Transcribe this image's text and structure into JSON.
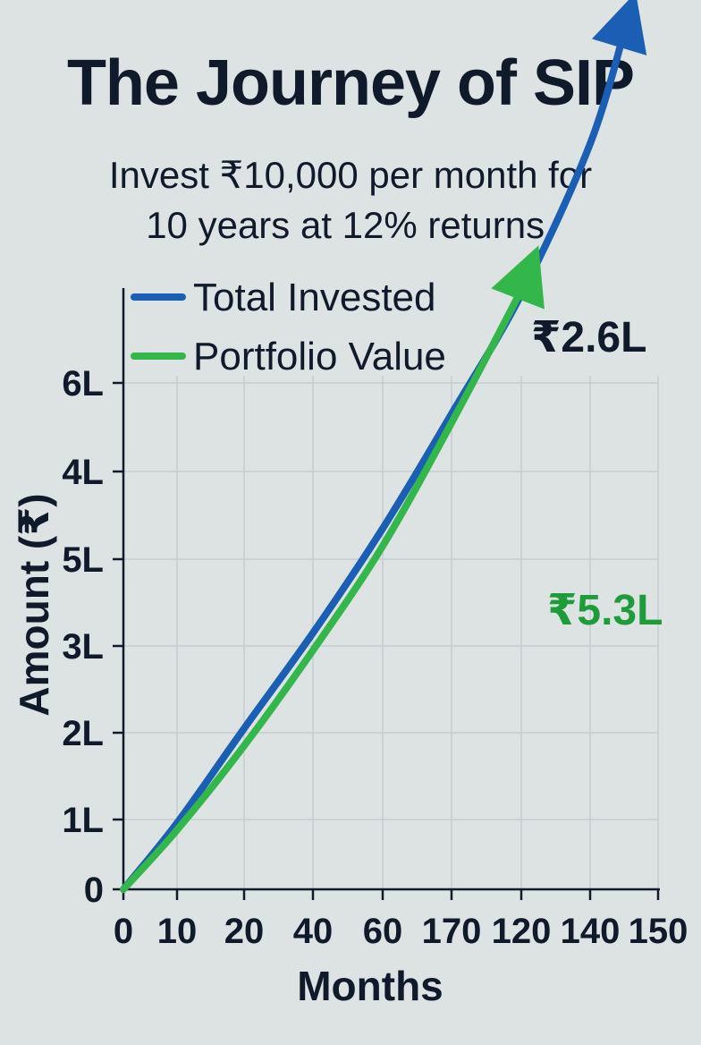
{
  "title": "The Journey of SIP",
  "subtitle_line1": "Invest ₹10,000 per month for",
  "subtitle_line2": "10 years at 12% returns.",
  "colors": {
    "total_invested": "#1a5fb4",
    "portfolio_value": "#33b64a",
    "annotation_green": "#1e9c3a",
    "text": "#0f1a2b",
    "grid": "#c3ccd2"
  },
  "chart_data": {
    "type": "line",
    "title": "The Journey of SIP",
    "xlabel": "Months",
    "ylabel": "Amount (₹)",
    "x_tick_labels": [
      "0",
      "10",
      "20",
      "40",
      "60",
      "170",
      "120",
      "140",
      "150"
    ],
    "y_tick_labels": [
      "0",
      "1L",
      "2L",
      "3L",
      "5L",
      "4L",
      "6L"
    ],
    "grid": true,
    "legend_position": "top-left",
    "series": [
      {
        "name": "Total Invested",
        "color": "#1a5fb4",
        "x_index": [
          0,
          1,
          2,
          3,
          4,
          5,
          6,
          7,
          7.55
        ],
        "y_index": [
          0,
          0.95,
          2.05,
          3.15,
          4.35,
          5.65,
          7.0,
          8.7,
          10.1
        ]
      },
      {
        "name": "Portfolio Value",
        "color": "#33b64a",
        "x_index": [
          0,
          1,
          2,
          3,
          4,
          5,
          6,
          6.1
        ],
        "y_index": [
          0,
          0.85,
          1.85,
          2.95,
          4.15,
          5.55,
          7.05,
          7.25
        ]
      }
    ],
    "annotations": [
      {
        "text": "₹2.6L",
        "series": "Total Invested",
        "color": "#0f1a2b"
      },
      {
        "text": "₹5.3L",
        "series": "Portfolio Value",
        "color": "#1e9c3a"
      }
    ]
  }
}
